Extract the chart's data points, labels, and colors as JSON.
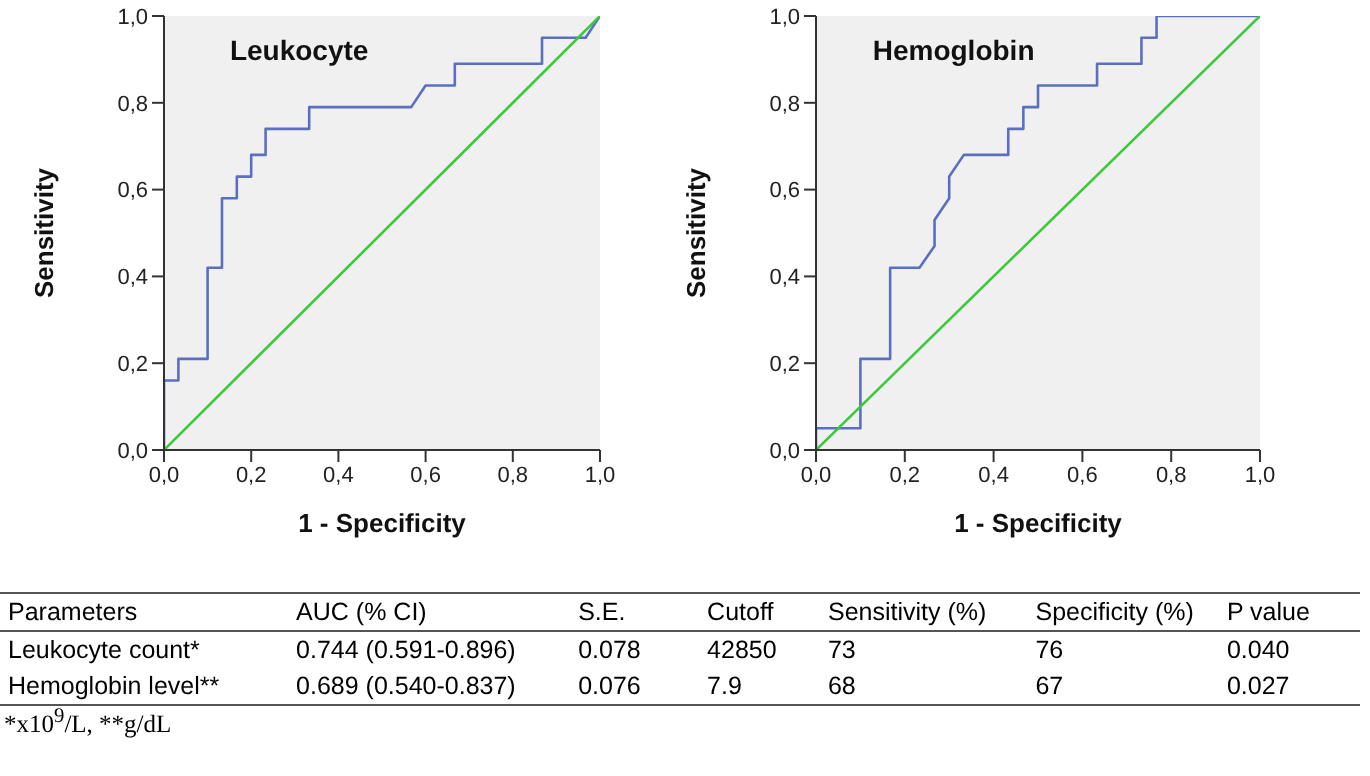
{
  "chart_data": [
    {
      "type": "line",
      "title": "Leukocyte",
      "xlabel": "1 - Specificity",
      "ylabel": "Sensitivity",
      "xlim": [
        0,
        1
      ],
      "ylim": [
        0,
        1
      ],
      "xticks": [
        {
          "value": 0,
          "label": "0,0"
        },
        {
          "value": 0.2,
          "label": "0,2"
        },
        {
          "value": 0.4,
          "label": "0,4"
        },
        {
          "value": 0.6,
          "label": "0,6"
        },
        {
          "value": 0.8,
          "label": "0,8"
        },
        {
          "value": 1,
          "label": "1,0"
        }
      ],
      "yticks": [
        {
          "value": 0,
          "label": "0,0"
        },
        {
          "value": 0.2,
          "label": "0,2"
        },
        {
          "value": 0.4,
          "label": "0,4"
        },
        {
          "value": 0.6,
          "label": "0,6"
        },
        {
          "value": 0.8,
          "label": "0,8"
        },
        {
          "value": 1,
          "label": "1,0"
        }
      ],
      "grid": false,
      "marker": "none",
      "line_style": "solid",
      "series": [
        {
          "color": "#5b6fc1",
          "x": [
            0,
            0,
            0.033,
            0.033,
            0.1,
            0.1,
            0.133,
            0.133,
            0.167,
            0.167,
            0.2,
            0.2,
            0.233,
            0.233,
            0.333,
            0.333,
            0.567,
            0.6,
            0.667,
            0.667,
            0.867,
            0.867,
            0.967,
            1
          ],
          "values": [
            0,
            0.16,
            0.16,
            0.21,
            0.21,
            0.42,
            0.42,
            0.58,
            0.58,
            0.63,
            0.63,
            0.68,
            0.68,
            0.74,
            0.74,
            0.79,
            0.79,
            0.84,
            0.84,
            0.89,
            0.89,
            0.95,
            0.95,
            1
          ]
        },
        {
          "color": "#3cc83c",
          "x": [
            0,
            1
          ],
          "values": [
            0,
            1
          ]
        }
      ]
    },
    {
      "type": "line",
      "title": "Hemoglobin",
      "xlabel": "1 - Specificity",
      "ylabel": "Sensitivity",
      "xlim": [
        0,
        1
      ],
      "ylim": [
        0,
        1
      ],
      "xticks": [
        {
          "value": 0,
          "label": "0,0"
        },
        {
          "value": 0.2,
          "label": "0,2"
        },
        {
          "value": 0.4,
          "label": "0,4"
        },
        {
          "value": 0.6,
          "label": "0,6"
        },
        {
          "value": 0.8,
          "label": "0,8"
        },
        {
          "value": 1,
          "label": "1,0"
        }
      ],
      "yticks": [
        {
          "value": 0,
          "label": "0,0"
        },
        {
          "value": 0.2,
          "label": "0,2"
        },
        {
          "value": 0.4,
          "label": "0,4"
        },
        {
          "value": 0.6,
          "label": "0,6"
        },
        {
          "value": 0.8,
          "label": "0,8"
        },
        {
          "value": 1,
          "label": "1,0"
        }
      ],
      "grid": false,
      "marker": "none",
      "line_style": "solid",
      "series": [
        {
          "color": "#5b6fc1",
          "x": [
            0,
            0,
            0.1,
            0.1,
            0.167,
            0.167,
            0.233,
            0.267,
            0.267,
            0.3,
            0.3,
            0.333,
            0.433,
            0.433,
            0.467,
            0.467,
            0.5,
            0.5,
            0.633,
            0.633,
            0.733,
            0.733,
            0.767,
            0.767,
            1
          ],
          "values": [
            0,
            0.05,
            0.05,
            0.21,
            0.21,
            0.42,
            0.42,
            0.47,
            0.53,
            0.58,
            0.63,
            0.68,
            0.68,
            0.74,
            0.74,
            0.79,
            0.79,
            0.84,
            0.84,
            0.89,
            0.89,
            0.95,
            0.95,
            1,
            1
          ]
        },
        {
          "color": "#3cc83c",
          "x": [
            0,
            1
          ],
          "values": [
            0,
            1
          ]
        }
      ]
    },
    {
      "type": "other",
      "categories": [
        "Parameters",
        "AUC (% CI)",
        "S.E.",
        "Cutoff",
        "Sensitivity (%)",
        "Specificity (%)",
        "P value"
      ],
      "y_categories": [
        "Leukocyte count*",
        "Hemoglobin level**"
      ],
      "cell_labels": [
        [
          "0.744 (0.591-0.896)",
          "0.078",
          "42850",
          "73",
          "76",
          "0.040"
        ],
        [
          "0.689 (0.540-0.837)",
          "0.076",
          "7.9",
          "68",
          "67",
          "0.027"
        ]
      ],
      "annotations": [
        "*x10$^{9}$/L, **g/dL"
      ]
    }
  ]
}
